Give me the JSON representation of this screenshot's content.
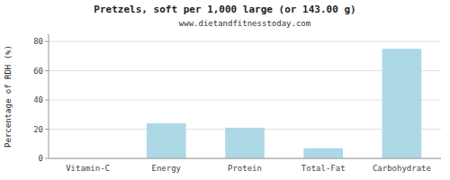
{
  "chart_data": {
    "type": "bar",
    "title": "Pretzels, soft per 1,000 large (or 143.00 g)",
    "subtitle": "www.dietandfitnesstoday.com",
    "categories": [
      "Vitamin-C",
      "Energy",
      "Protein",
      "Total-Fat",
      "Carbohydrate"
    ],
    "values": [
      0,
      24,
      21,
      7,
      75
    ],
    "color": "#add8e6",
    "ylabel": "Percentage of RDH (%)",
    "ylim": [
      0,
      85
    ],
    "yticks": [
      0,
      20,
      40,
      60,
      80
    ],
    "grid": true
  }
}
